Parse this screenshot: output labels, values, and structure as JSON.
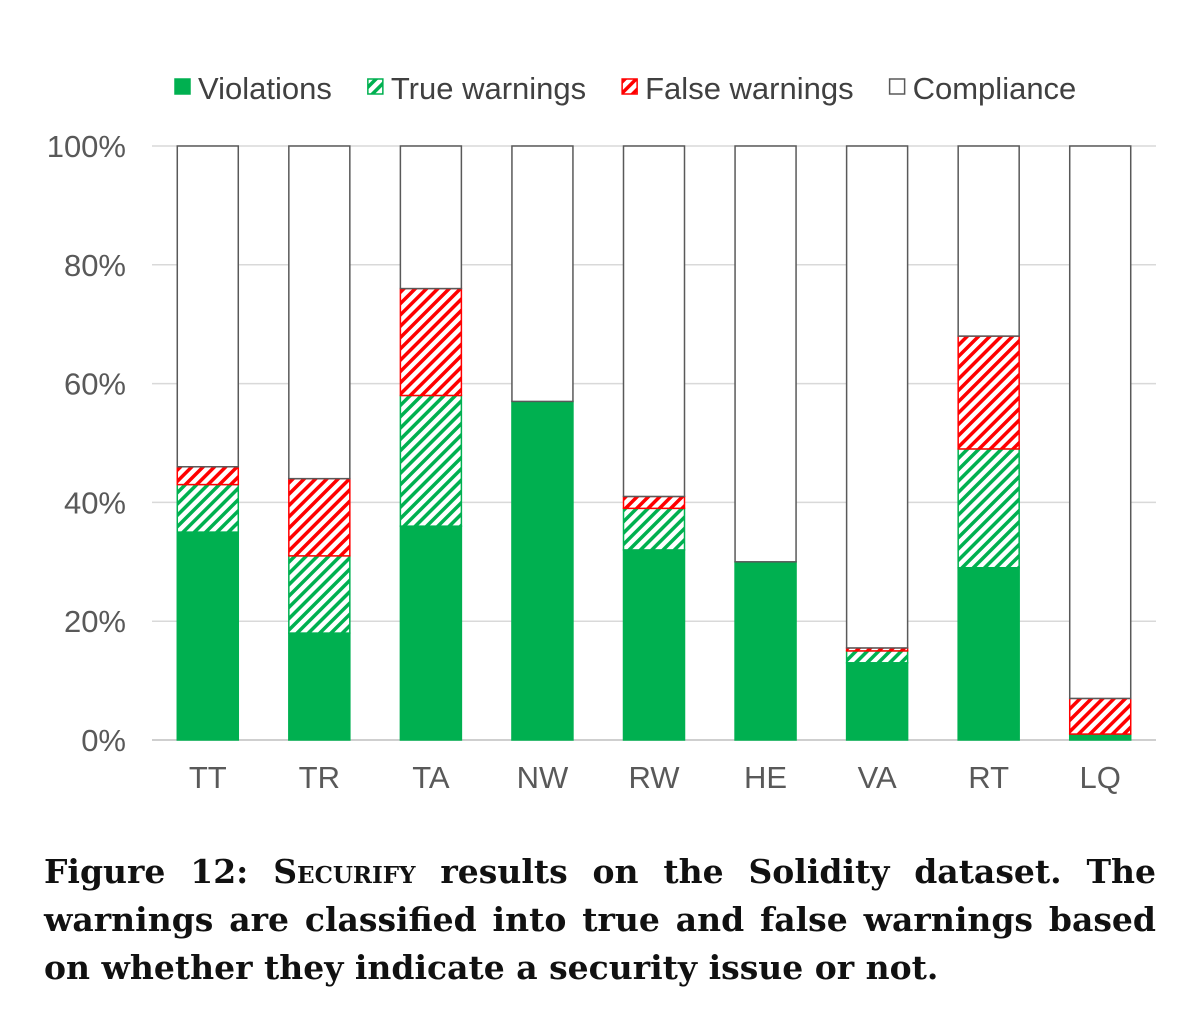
{
  "chart_data": {
    "type": "bar",
    "stacked": true,
    "categories": [
      "TT",
      "TR",
      "TA",
      "NW",
      "RW",
      "HE",
      "VA",
      "RT",
      "LQ"
    ],
    "series": [
      {
        "name": "Violations",
        "values": [
          35,
          18,
          36,
          57,
          32,
          30,
          13,
          29,
          1
        ],
        "color": "#00b050",
        "pattern": "solid"
      },
      {
        "name": "True warnings",
        "values": [
          8,
          13,
          22,
          0,
          7,
          0,
          2,
          20,
          0
        ],
        "color": "#00b050",
        "pattern": "hatched"
      },
      {
        "name": "False warnings",
        "values": [
          3,
          13,
          18,
          0,
          2,
          0,
          0.5,
          19,
          6
        ],
        "color": "#ff0000",
        "pattern": "hatched"
      },
      {
        "name": "Compliance",
        "values": [
          54,
          56,
          24,
          43,
          59,
          70,
          84.5,
          32,
          93
        ],
        "color": "#ffffff",
        "pattern": "outline"
      }
    ],
    "ylim": [
      0,
      100
    ],
    "yticks": [
      "0%",
      "20%",
      "40%",
      "60%",
      "80%",
      "100%"
    ],
    "grid": true,
    "legend_position": "top"
  },
  "caption": {
    "lead": "Figure 12: ",
    "tool": "Securify",
    "rest": " results on the Solidity dataset. The warnings are classified into true and false warnings based on whether they indicate a security issue or not."
  }
}
